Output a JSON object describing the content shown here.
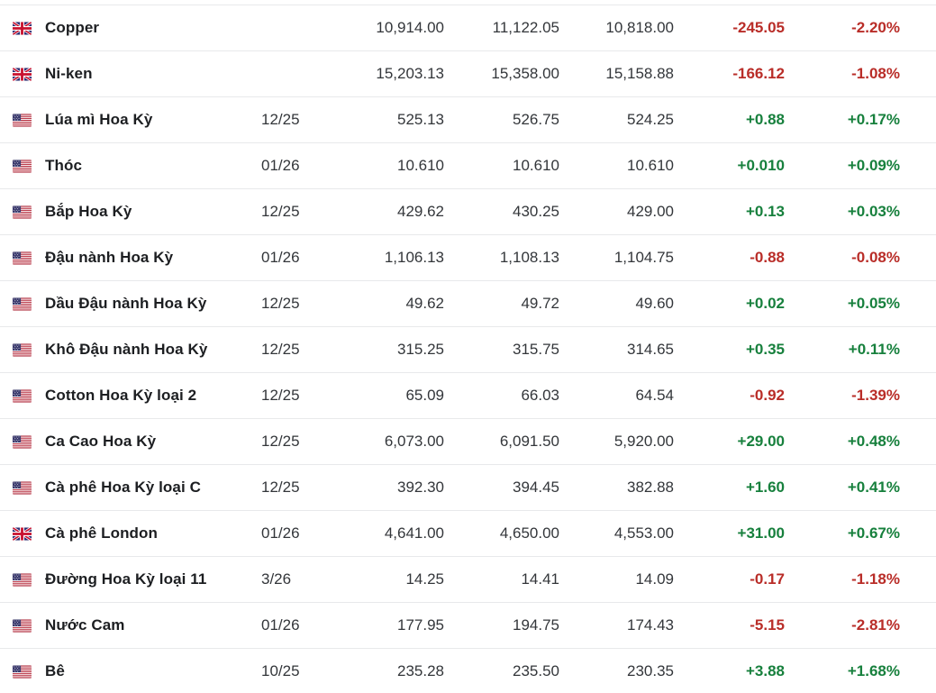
{
  "table": {
    "description": "commodity-futures-quote-table",
    "colors": {
      "up": "#17803d",
      "down": "#b92d28",
      "text": "#1c1e21",
      "number_text": "#33363a",
      "divider": "#e8e9eb",
      "background": "#ffffff"
    },
    "rows": [
      {
        "flag": "gb",
        "name": "Copper",
        "month": "",
        "last": "10,914.00",
        "high": "11,122.05",
        "low": "10,818.00",
        "change": "-245.05",
        "change_pct": "-2.20%",
        "direction": "down"
      },
      {
        "flag": "gb",
        "name": "Ni-ken",
        "month": "",
        "last": "15,203.13",
        "high": "15,358.00",
        "low": "15,158.88",
        "change": "-166.12",
        "change_pct": "-1.08%",
        "direction": "down"
      },
      {
        "flag": "us",
        "name": "Lúa mì Hoa Kỳ",
        "month": "12/25",
        "last": "525.13",
        "high": "526.75",
        "low": "524.25",
        "change": "+0.88",
        "change_pct": "+0.17%",
        "direction": "up"
      },
      {
        "flag": "us",
        "name": "Thóc",
        "month": "01/26",
        "last": "10.610",
        "high": "10.610",
        "low": "10.610",
        "change": "+0.010",
        "change_pct": "+0.09%",
        "direction": "up"
      },
      {
        "flag": "us",
        "name": "Bắp Hoa Kỳ",
        "month": "12/25",
        "last": "429.62",
        "high": "430.25",
        "low": "429.00",
        "change": "+0.13",
        "change_pct": "+0.03%",
        "direction": "up"
      },
      {
        "flag": "us",
        "name": "Đậu nành Hoa Kỳ",
        "month": "01/26",
        "last": "1,106.13",
        "high": "1,108.13",
        "low": "1,104.75",
        "change": "-0.88",
        "change_pct": "-0.08%",
        "direction": "down"
      },
      {
        "flag": "us",
        "name": "Dầu Đậu nành Hoa Kỳ",
        "month": "12/25",
        "last": "49.62",
        "high": "49.72",
        "low": "49.60",
        "change": "+0.02",
        "change_pct": "+0.05%",
        "direction": "up"
      },
      {
        "flag": "us",
        "name": "Khô Đậu nành Hoa Kỳ",
        "month": "12/25",
        "last": "315.25",
        "high": "315.75",
        "low": "314.65",
        "change": "+0.35",
        "change_pct": "+0.11%",
        "direction": "up"
      },
      {
        "flag": "us",
        "name": "Cotton Hoa Kỳ loại 2",
        "month": "12/25",
        "last": "65.09",
        "high": "66.03",
        "low": "64.54",
        "change": "-0.92",
        "change_pct": "-1.39%",
        "direction": "down"
      },
      {
        "flag": "us",
        "name": "Ca Cao Hoa Kỳ",
        "month": "12/25",
        "last": "6,073.00",
        "high": "6,091.50",
        "low": "5,920.00",
        "change": "+29.00",
        "change_pct": "+0.48%",
        "direction": "up"
      },
      {
        "flag": "us",
        "name": "Cà phê Hoa Kỳ loại C",
        "month": "12/25",
        "last": "392.30",
        "high": "394.45",
        "low": "382.88",
        "change": "+1.60",
        "change_pct": "+0.41%",
        "direction": "up"
      },
      {
        "flag": "gb",
        "name": "Cà phê London",
        "month": "01/26",
        "last": "4,641.00",
        "high": "4,650.00",
        "low": "4,553.00",
        "change": "+31.00",
        "change_pct": "+0.67%",
        "direction": "up"
      },
      {
        "flag": "us",
        "name": "Đường Hoa Kỳ loại 11",
        "month": "3/26",
        "last": "14.25",
        "high": "14.41",
        "low": "14.09",
        "change": "-0.17",
        "change_pct": "-1.18%",
        "direction": "down"
      },
      {
        "flag": "us",
        "name": "Nước Cam",
        "month": "01/26",
        "last": "177.95",
        "high": "194.75",
        "low": "174.43",
        "change": "-5.15",
        "change_pct": "-2.81%",
        "direction": "down"
      },
      {
        "flag": "us",
        "name": "Bê",
        "month": "10/25",
        "last": "235.28",
        "high": "235.50",
        "low": "230.35",
        "change": "+3.88",
        "change_pct": "+1.68%",
        "direction": "up"
      }
    ]
  }
}
